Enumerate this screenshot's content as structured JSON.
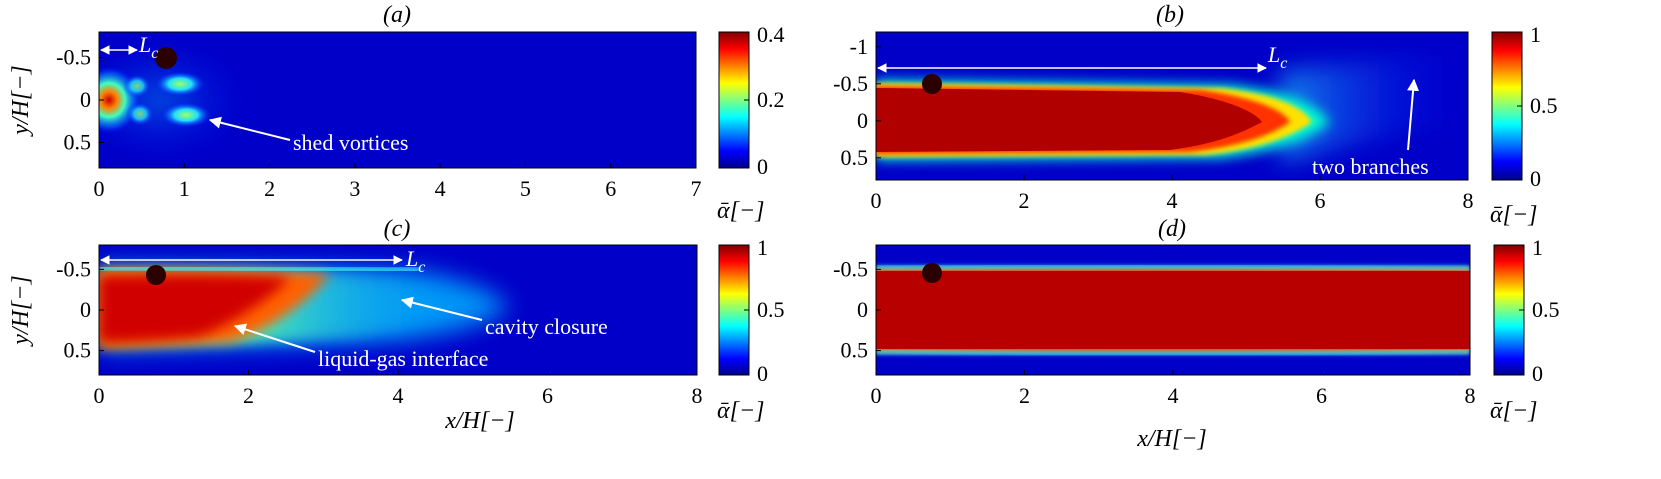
{
  "chart_data": [
    {
      "id": "a",
      "type": "heatmap",
      "panel_label": "(a)",
      "xlabel": "",
      "ylabel": "y/H[−]",
      "xlim": [
        0,
        7
      ],
      "ylim": [
        -0.8,
        0.8
      ],
      "y_inverted": true,
      "x_ticks": [
        "0",
        "1",
        "2",
        "3",
        "4",
        "5",
        "6",
        "7"
      ],
      "y_ticks": [
        "-0.5",
        "0",
        "0.5"
      ],
      "colorbar": {
        "label": "ᾱ[−]",
        "min": 0,
        "max": 0.4,
        "ticks": [
          "0",
          "0.2",
          "0.4"
        ]
      },
      "markers": [
        {
          "type": "dot",
          "x": 0.8,
          "y": -0.5
        }
      ],
      "lc_length": 0.5,
      "annotations": {
        "lc": "L",
        "lc_sub": "c",
        "shed": "shed vortices"
      }
    },
    {
      "id": "b",
      "type": "heatmap",
      "panel_label": "(b)",
      "xlabel": "",
      "ylabel": "",
      "xlim": [
        0,
        8
      ],
      "ylim": [
        -1.2,
        0.8
      ],
      "y_inverted": true,
      "x_ticks": [
        "0",
        "2",
        "4",
        "6",
        "8"
      ],
      "y_ticks": [
        "-1",
        "-0.5",
        "0",
        "0.5"
      ],
      "colorbar": {
        "label": "ᾱ[−]",
        "min": 0,
        "max": 1,
        "ticks": [
          "0",
          "0.5",
          "1"
        ]
      },
      "markers": [
        {
          "type": "dot",
          "x": 0.8,
          "y": -0.5
        }
      ],
      "lc_length": 5.3,
      "annotations": {
        "lc": "L",
        "lc_sub": "c",
        "branches": "two branches"
      }
    },
    {
      "id": "c",
      "type": "heatmap",
      "panel_label": "(c)",
      "xlabel": "x/H[−]",
      "ylabel": "y/H[−]",
      "xlim": [
        0,
        8
      ],
      "ylim": [
        -0.8,
        0.8
      ],
      "y_inverted": true,
      "x_ticks": [
        "0",
        "2",
        "4",
        "6",
        "8"
      ],
      "y_ticks": [
        "-0.5",
        "0",
        "0.5"
      ],
      "colorbar": {
        "label": "ᾱ[−]",
        "min": 0,
        "max": 1,
        "ticks": [
          "0",
          "0.5",
          "1"
        ]
      },
      "markers": [
        {
          "type": "dot",
          "x": 0.8,
          "y": -0.5
        }
      ],
      "lc_length": 4.2,
      "annotations": {
        "lc": "L",
        "lc_sub": "c",
        "closure": "cavity closure",
        "interface": "liquid-gas interface"
      }
    },
    {
      "id": "d",
      "type": "heatmap",
      "panel_label": "(d)",
      "xlabel": "x/H[−]",
      "ylabel": "",
      "xlim": [
        0,
        8
      ],
      "ylim": [
        -0.8,
        0.8
      ],
      "y_inverted": true,
      "x_ticks": [
        "0",
        "2",
        "4",
        "6",
        "8"
      ],
      "y_ticks": [
        "-0.5",
        "0",
        "0.5"
      ],
      "colorbar": {
        "label": "ᾱ[−]",
        "min": 0,
        "max": 1,
        "ticks": [
          "0",
          "0.5",
          "1"
        ]
      },
      "markers": [
        {
          "type": "dot",
          "x": 0.8,
          "y": -0.5
        }
      ]
    }
  ]
}
